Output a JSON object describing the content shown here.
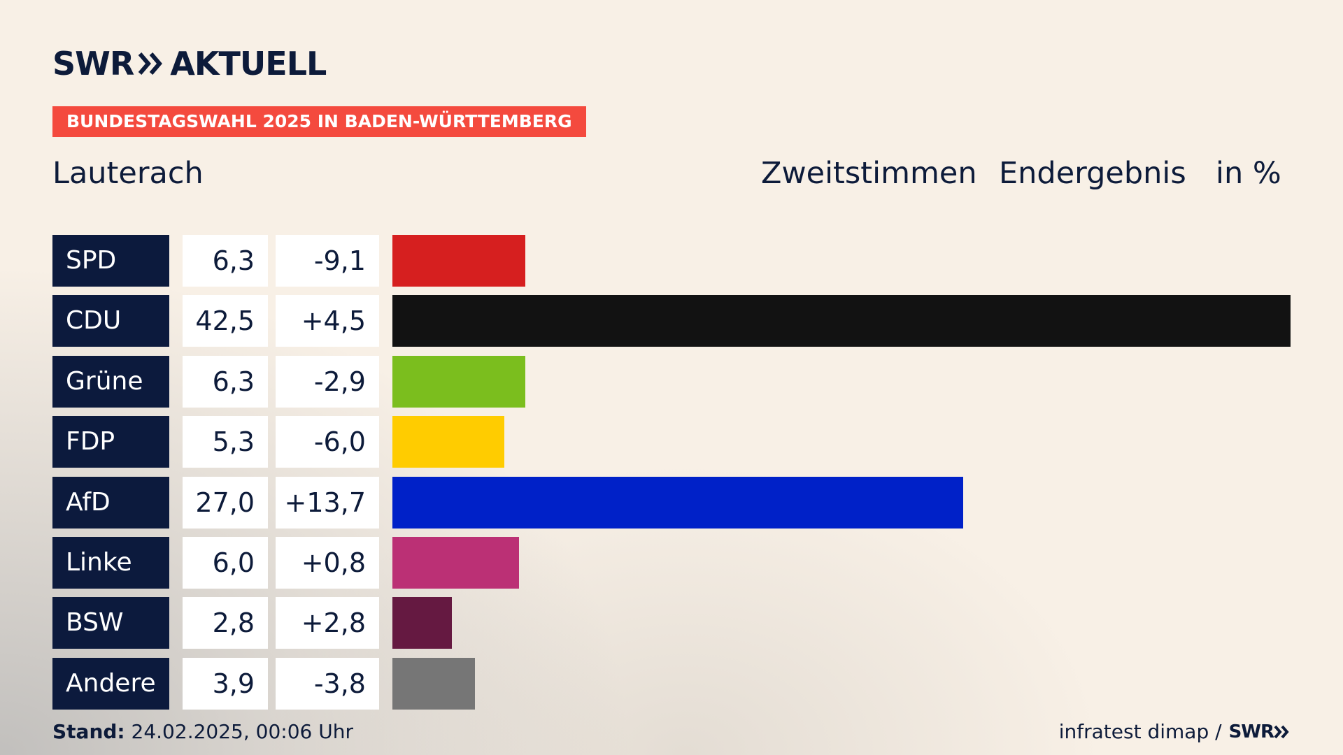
{
  "logo": {
    "left": "SWR",
    "right": "AKTUELL"
  },
  "banner": "BUNDESTAGSWAHL 2025 IN BADEN-WÜRTTEMBERG",
  "region": "Lauterach",
  "headers": {
    "vote_type": "Zweitstimmen",
    "status": "Endergebnis",
    "unit": "in %"
  },
  "footer": {
    "stand_label": "Stand:",
    "stand_value": "24.02.2025, 00:06 Uhr",
    "source": "infratest dimap /",
    "source_logo": "SWR"
  },
  "chart_data": {
    "type": "bar",
    "orientation": "horizontal",
    "categories": [
      "SPD",
      "CDU",
      "Grüne",
      "FDP",
      "AfD",
      "Linke",
      "BSW",
      "Andere"
    ],
    "values": [
      6.3,
      42.5,
      6.3,
      5.3,
      27.0,
      6.0,
      2.8,
      3.9
    ],
    "value_labels": [
      "6,3",
      "42,5",
      "6,3",
      "5,3",
      "27,0",
      "6,0",
      "2,8",
      "3,9"
    ],
    "change_labels": [
      "-9,1",
      "+4,5",
      "-2,9",
      "-6,0",
      "+13,7",
      "+0,8",
      "+2,8",
      "-3,8"
    ],
    "changes": [
      -9.1,
      4.5,
      -2.9,
      -6.0,
      13.7,
      0.8,
      2.8,
      -3.8
    ],
    "colors": [
      "#d61f1f",
      "#121212",
      "#7bbe1e",
      "#ffcc00",
      "#0021c8",
      "#bb3075",
      "#651941",
      "#767676"
    ],
    "xlim": [
      0,
      42.5
    ],
    "grid": false,
    "legend": "none"
  }
}
